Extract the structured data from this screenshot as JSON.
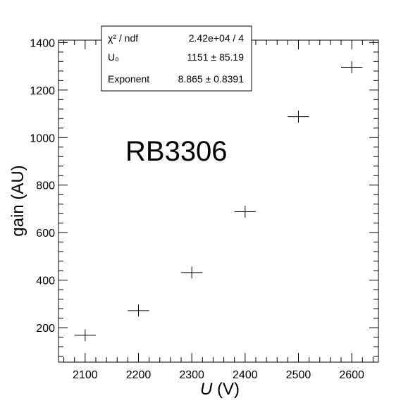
{
  "chart_data": {
    "type": "scatter",
    "xlabel_var": "U",
    "xlabel_unit": " (V)",
    "ylabel": "gain (AU)",
    "xlim": [
      2050,
      2650
    ],
    "ylim": [
      55,
      1410
    ],
    "x_ticks": [
      2100,
      2200,
      2300,
      2400,
      2500,
      2600
    ],
    "y_ticks": [
      200,
      400,
      600,
      800,
      1000,
      1200,
      1400
    ],
    "annotation": "RB3306",
    "series": [
      {
        "x": [
          2100,
          2200,
          2300,
          2400,
          2500,
          2600
        ],
        "y": [
          168,
          272,
          432,
          688,
          1088,
          1296
        ],
        "x_err": 20,
        "y_err": 25,
        "color": "#000000",
        "marker": "cross"
      }
    ],
    "fit": {
      "model": "U0 * (U/1000)^Exponent",
      "U0": 1151,
      "exponent": 8.865,
      "color": "#dd0000"
    },
    "stats_box": {
      "rows": [
        {
          "name": "χ² / ndf",
          "value": "2.42e+04 / 4"
        },
        {
          "name": "U₀",
          "value": "1151 ± 85.19"
        },
        {
          "name": "Exponent",
          "value": "8.865 ± 0.8391"
        }
      ]
    },
    "grid": false
  }
}
